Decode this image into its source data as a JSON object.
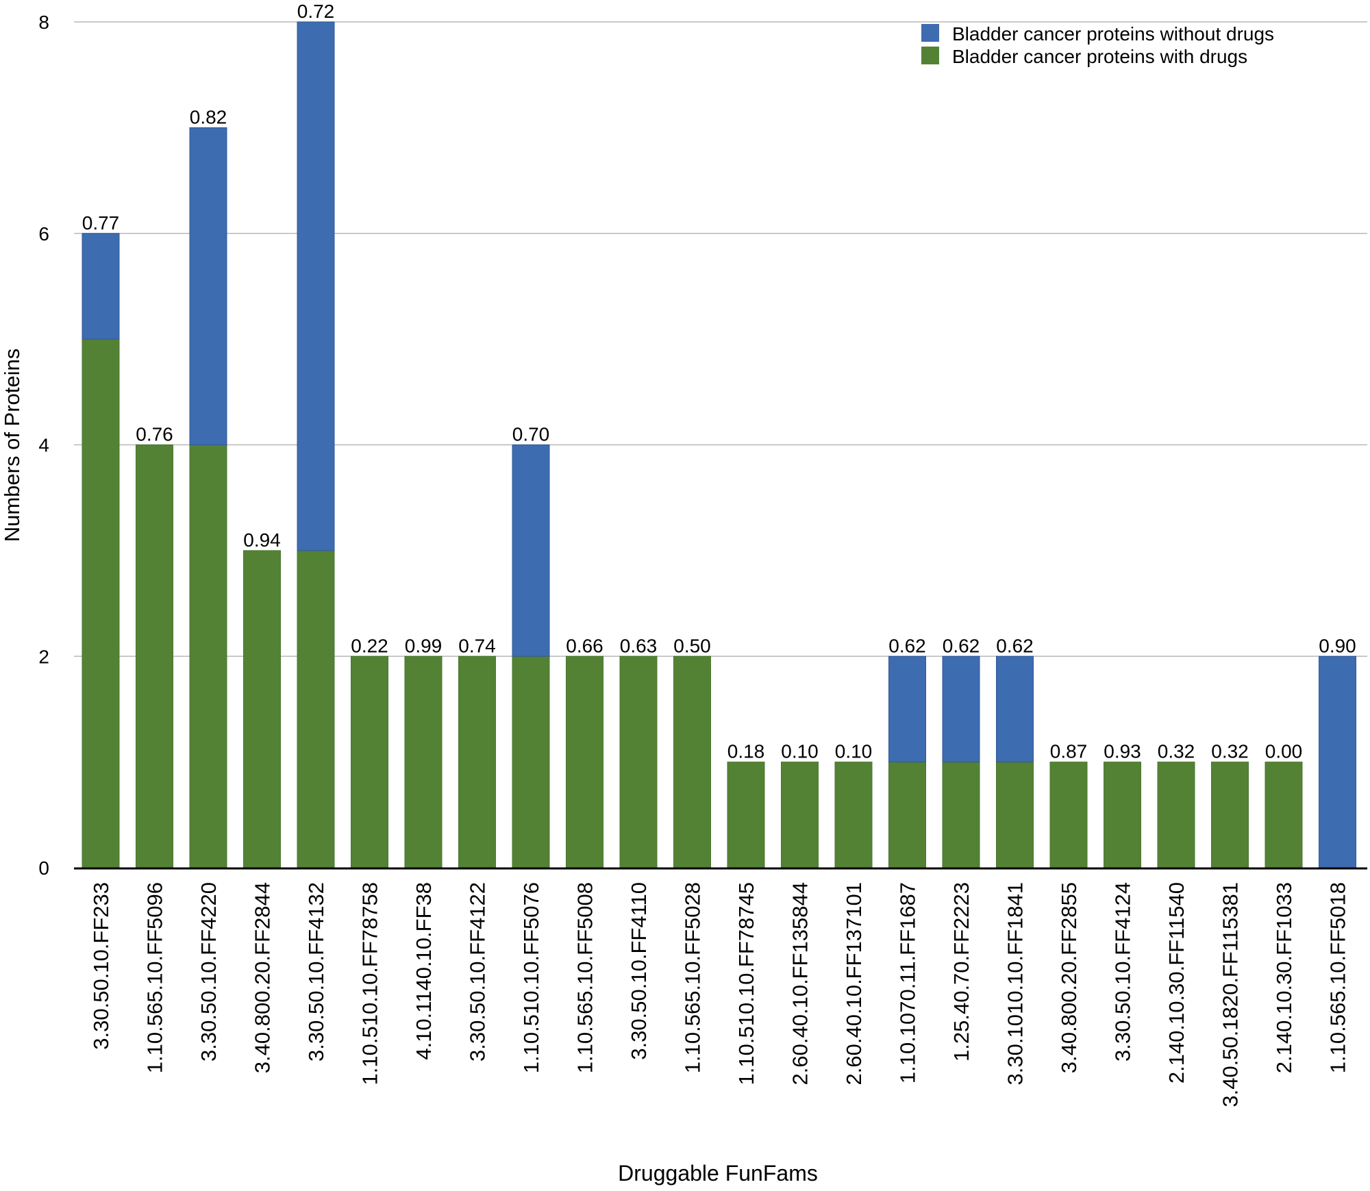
{
  "chart_data": {
    "type": "bar",
    "stacked": true,
    "xlabel": "Druggable FunFams",
    "ylabel": "Numbers of Proteins",
    "ylim": [
      0,
      8
    ],
    "yticks": [
      0,
      2,
      4,
      6,
      8
    ],
    "grid": true,
    "legend_position": "top-right",
    "categories": [
      "3.30.50.10.FF233",
      "1.10.565.10.FF5096",
      "3.30.50.10.FF4220",
      "3.40.800.20.FF2844",
      "3.30.50.10.FF4132",
      "1.10.510.10.FF78758",
      "4.10.1140.10.FF38",
      "3.30.50.10.FF4122",
      "1.10.510.10.FF5076",
      "1.10.565.10.FF5008",
      "3.30.50.10.FF4110",
      "1.10.565.10.FF5028",
      "1.10.510.10.FF78745",
      "2.60.40.10.FF135844",
      "2.60.40.10.FF137101",
      "1.10.1070.11.FF1687",
      "1.25.40.70.FF2223",
      "3.30.1010.10.FF1841",
      "3.40.800.20.FF2855",
      "3.30.50.10.FF4124",
      "2.140.10.30.FF11540",
      "3.40.50.1820.FF115381",
      "2.140.10.30.FF1033",
      "1.10.565.10.FF5018"
    ],
    "series": [
      {
        "name": "Bladder cancer proteins with drugs",
        "color": "#548235",
        "values": [
          5,
          4,
          4,
          3,
          3,
          2,
          2,
          2,
          2,
          2,
          2,
          2,
          1,
          1,
          1,
          1,
          1,
          1,
          1,
          1,
          1,
          1,
          1,
          0
        ]
      },
      {
        "name": "Bladder cancer proteins without drugs",
        "color": "#3d6cb0",
        "values": [
          1,
          0,
          3,
          0,
          5,
          0,
          0,
          0,
          2,
          0,
          0,
          0,
          0,
          0,
          0,
          1,
          1,
          1,
          0,
          0,
          0,
          0,
          0,
          2
        ]
      }
    ],
    "data_labels": [
      "0.77",
      "0.76",
      "0.82",
      "0.94",
      "0.72",
      "0.22",
      "0.99",
      "0.74",
      "0.70",
      "0.66",
      "0.63",
      "0.50",
      "0.18",
      "0.10",
      "0.10",
      "0.62",
      "0.62",
      "0.62",
      "0.87",
      "0.93",
      "0.32",
      "0.32",
      "0.00",
      "0.90"
    ],
    "legend": [
      "Bladder cancer proteins without drugs",
      "Bladder cancer proteins with drugs"
    ]
  }
}
